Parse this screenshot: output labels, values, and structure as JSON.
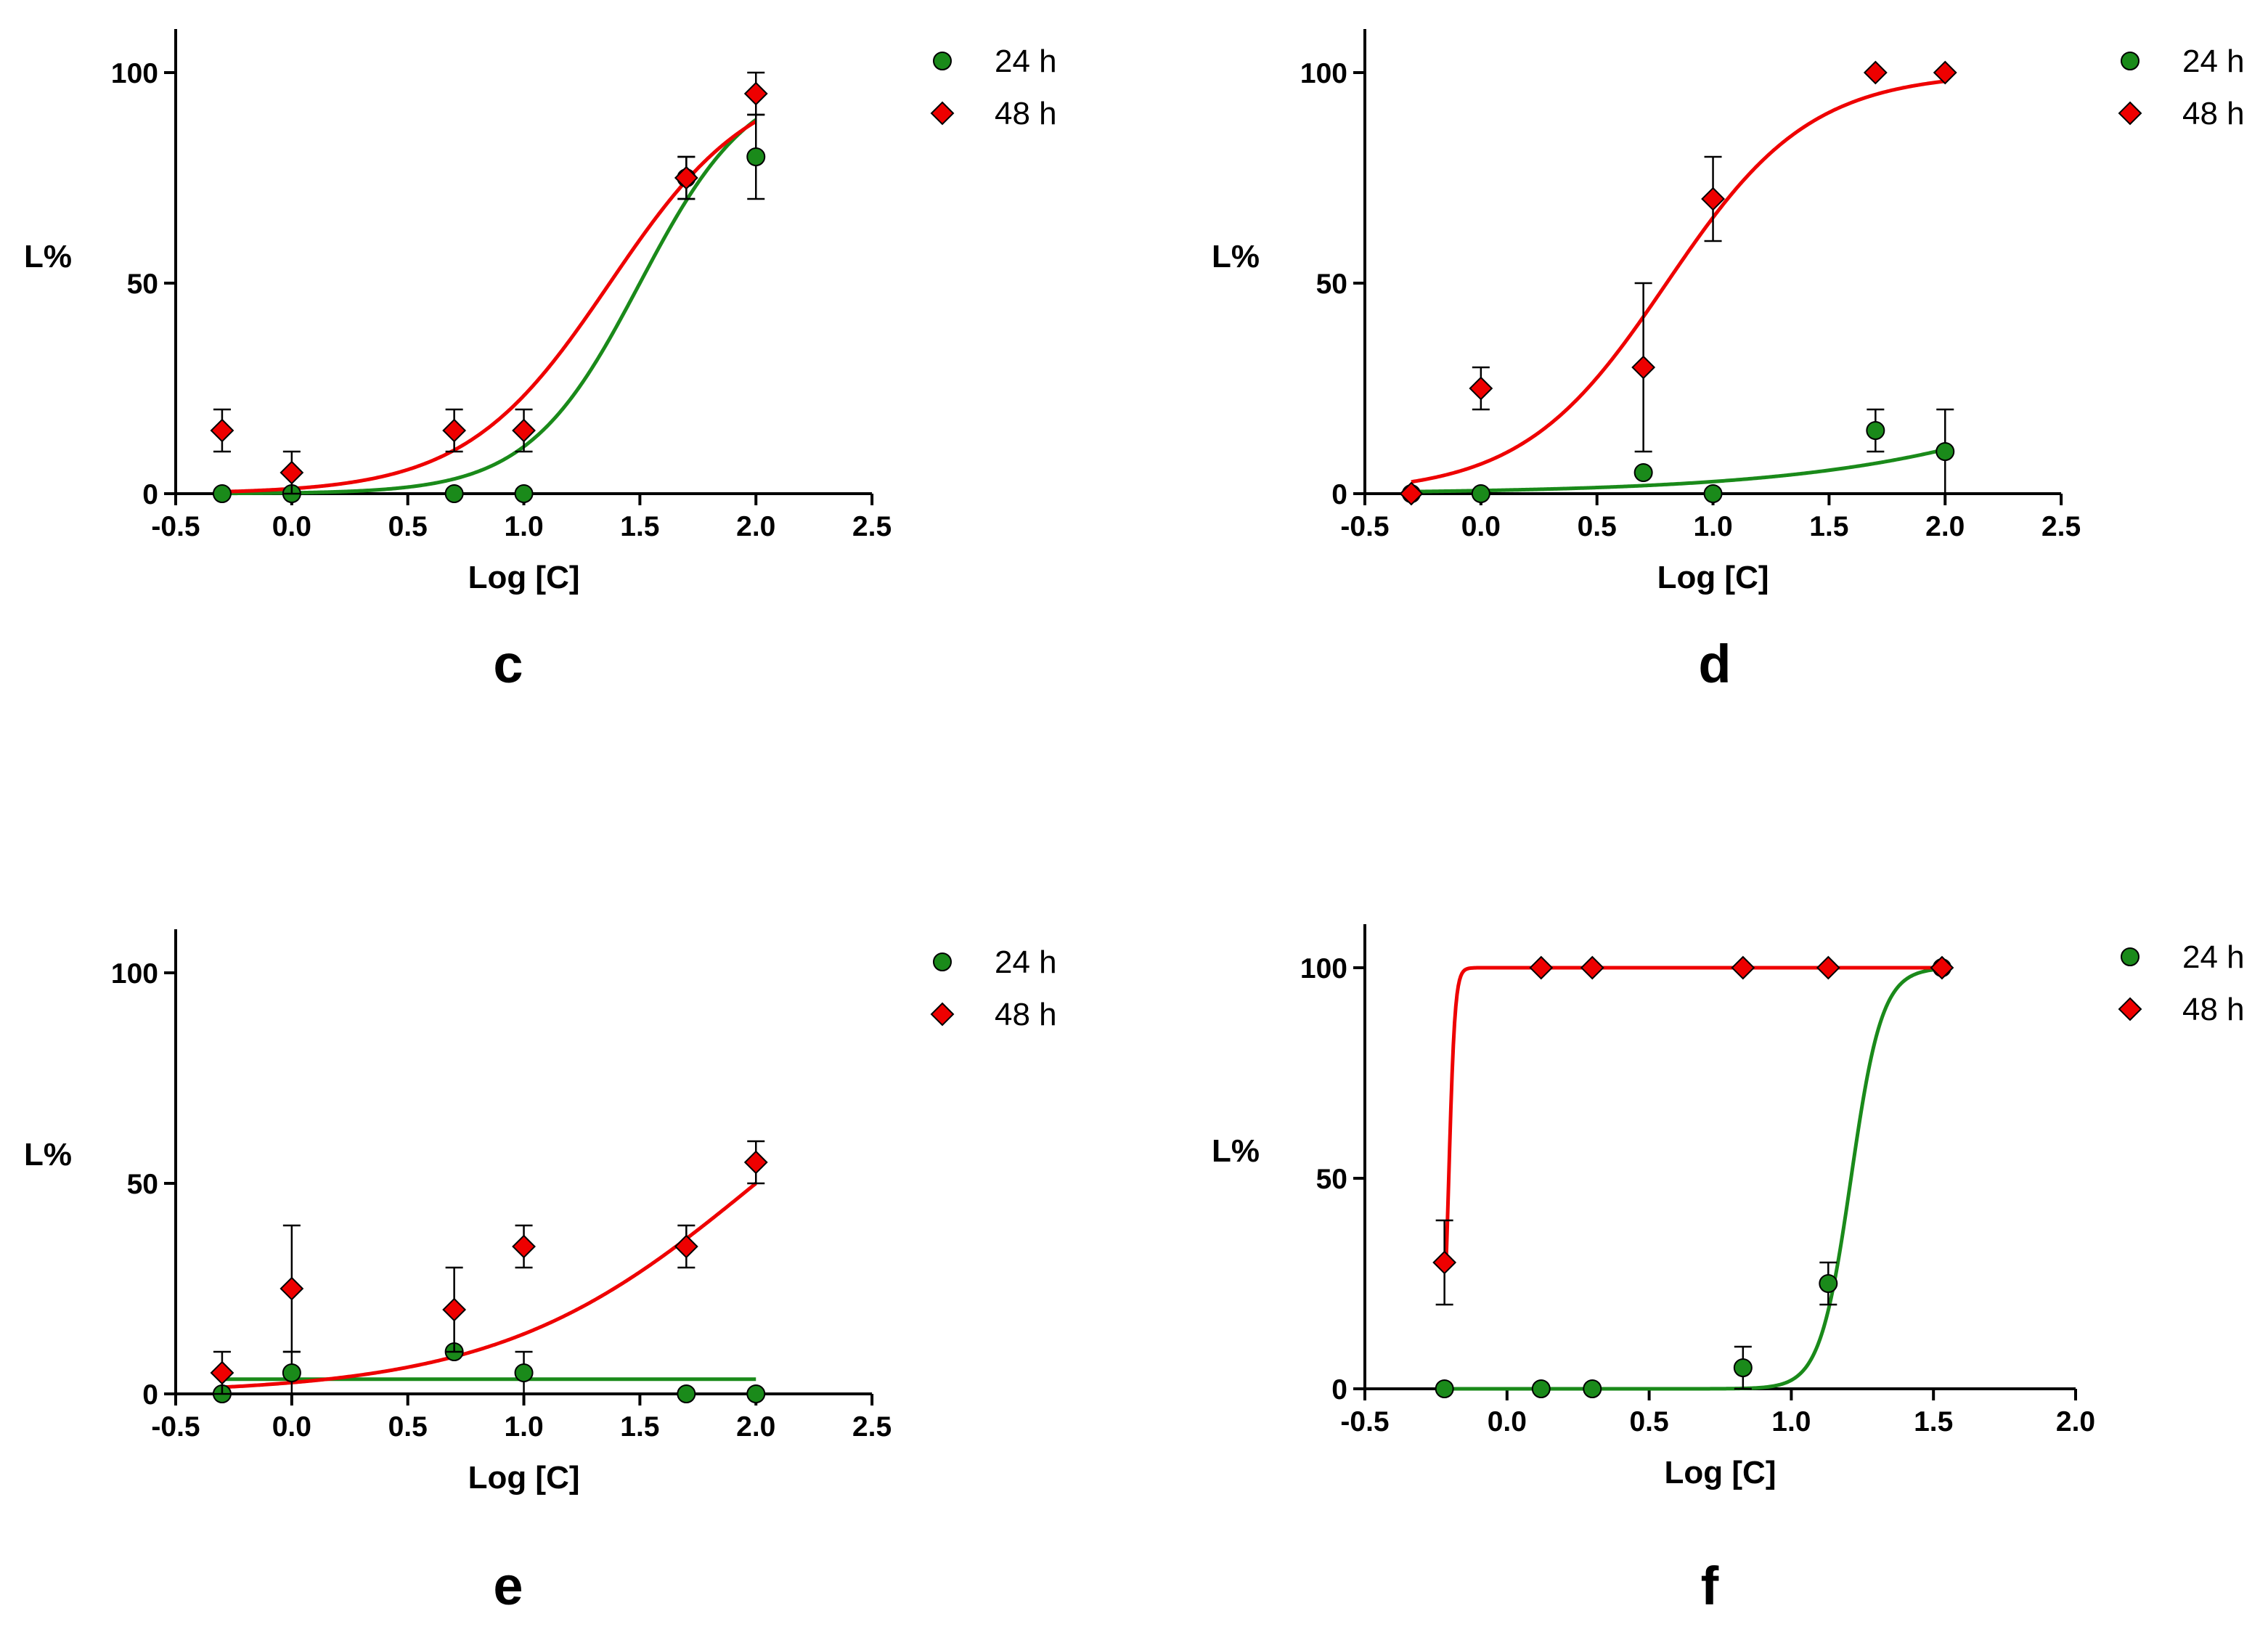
{
  "chart_data": [
    {
      "type": "line",
      "panel_label": "c",
      "xlabel": "Log [C]",
      "ylabel": "L%",
      "xlim": [
        -0.5,
        2.5
      ],
      "ylim": [
        0,
        110
      ],
      "xticks": [
        -0.5,
        0.0,
        0.5,
        1.0,
        1.5,
        2.0,
        2.5
      ],
      "xtick_labels": [
        "-0.5",
        "0.0",
        "0.5",
        "1.0",
        "1.5",
        "2.0",
        "2.5"
      ],
      "yticks": [
        0,
        50,
        100
      ],
      "ytick_labels": [
        "0",
        "50",
        "100"
      ],
      "legend_position": "top-right",
      "series": [
        {
          "name": "24 h",
          "marker": "circle",
          "color": "#1a8a1a",
          "x": [
            -0.3,
            0.0,
            0.7,
            1.0,
            1.7,
            2.0
          ],
          "y": [
            0,
            0,
            0,
            0,
            75,
            80
          ],
          "err": [
            0,
            0,
            0,
            0,
            5,
            10
          ],
          "fit": {
            "bottom": 0,
            "top": 100,
            "logEC50": 1.5,
            "hill": 1.8
          }
        },
        {
          "name": "48 h",
          "marker": "diamond",
          "color": "#ee0000",
          "x": [
            -0.3,
            0.0,
            0.7,
            1.0,
            1.7,
            2.0
          ],
          "y": [
            15,
            5,
            15,
            15,
            75,
            95
          ],
          "err": [
            5,
            5,
            5,
            5,
            5,
            5
          ],
          "fit": {
            "bottom": 0,
            "top": 100,
            "logEC50": 1.37,
            "hill": 1.4
          }
        }
      ]
    },
    {
      "type": "line",
      "panel_label": "d",
      "xlabel": "Log [C]",
      "ylabel": "L%",
      "xlim": [
        -0.5,
        2.5
      ],
      "ylim": [
        0,
        110
      ],
      "xticks": [
        -0.5,
        0.0,
        0.5,
        1.0,
        1.5,
        2.0,
        2.5
      ],
      "xtick_labels": [
        "-0.5",
        "0.0",
        "0.5",
        "1.0",
        "1.5",
        "2.0",
        "2.5"
      ],
      "yticks": [
        0,
        50,
        100
      ],
      "ytick_labels": [
        "0",
        "50",
        "100"
      ],
      "legend_position": "top-right",
      "series": [
        {
          "name": "24 h",
          "marker": "circle",
          "color": "#1a8a1a",
          "x": [
            -0.3,
            0.0,
            0.7,
            1.0,
            1.7,
            2.0
          ],
          "y": [
            0,
            0,
            5,
            0,
            15,
            10
          ],
          "err": [
            0,
            0,
            0,
            0,
            5,
            10
          ],
          "fit": {
            "bottom": 0,
            "top": 100,
            "logEC50": 3.55,
            "hill": 0.6
          }
        },
        {
          "name": "48 h",
          "marker": "diamond",
          "color": "#ee0000",
          "x": [
            -0.3,
            0.0,
            0.7,
            1.0,
            1.7,
            2.0
          ],
          "y": [
            0,
            25,
            30,
            70,
            100,
            100
          ],
          "err": [
            0,
            5,
            20,
            10,
            0,
            0
          ],
          "fit": {
            "bottom": 0,
            "top": 100,
            "logEC50": 0.8,
            "hill": 1.4
          }
        }
      ]
    },
    {
      "type": "line",
      "panel_label": "e",
      "xlabel": "Log [C]",
      "ylabel": "L%",
      "xlim": [
        -0.5,
        2.5
      ],
      "ylim": [
        0,
        110
      ],
      "xticks": [
        -0.5,
        0.0,
        0.5,
        1.0,
        1.5,
        2.0,
        2.5
      ],
      "xtick_labels": [
        "-0.5",
        "0.0",
        "0.5",
        "1.0",
        "1.5",
        "2.0",
        "2.5"
      ],
      "yticks": [
        0,
        50,
        100
      ],
      "ytick_labels": [
        "0",
        "50",
        "100"
      ],
      "legend_position": "top-right",
      "series": [
        {
          "name": "24 h",
          "marker": "circle",
          "color": "#1a8a1a",
          "x": [
            -0.3,
            0.0,
            0.7,
            1.0,
            1.7,
            2.0
          ],
          "y": [
            0,
            5,
            10,
            5,
            0,
            0
          ],
          "err": [
            0,
            5,
            0,
            5,
            0,
            0
          ],
          "fit": {
            "type": "constant",
            "value": 3.5
          }
        },
        {
          "name": "48 h",
          "marker": "diamond",
          "color": "#ee0000",
          "x": [
            -0.3,
            0.0,
            0.7,
            1.0,
            1.7,
            2.0
          ],
          "y": [
            5,
            25,
            20,
            35,
            35,
            55
          ],
          "err": [
            5,
            15,
            10,
            5,
            5,
            5
          ],
          "fit": {
            "bottom": 0,
            "top": 100,
            "logEC50": 2.0,
            "hill": 0.78
          }
        }
      ]
    },
    {
      "type": "line",
      "panel_label": "f",
      "xlabel": "Log [C]",
      "ylabel": "L%",
      "xlim": [
        -0.5,
        2.0
      ],
      "ylim": [
        0,
        110
      ],
      "xticks": [
        -0.5,
        0.0,
        0.5,
        1.0,
        1.5,
        2.0
      ],
      "xtick_labels": [
        "-0.5",
        "0.0",
        "0.5",
        "1.0",
        "1.5",
        "2.0"
      ],
      "yticks": [
        0,
        50,
        100
      ],
      "ytick_labels": [
        "0",
        "50",
        "100"
      ],
      "legend_position": "top-right",
      "series": [
        {
          "name": "24 h",
          "marker": "circle",
          "color": "#1a8a1a",
          "x": [
            -0.22,
            0.12,
            0.3,
            0.83,
            1.13,
            1.53
          ],
          "y": [
            0,
            0,
            0,
            5,
            25,
            100
          ],
          "err": [
            0,
            0,
            0,
            5,
            5,
            0
          ],
          "fit": {
            "bottom": 0,
            "top": 100,
            "logEC50": 1.21,
            "hill": 8.0,
            "xmin": -0.22,
            "xmax": 1.53
          }
        },
        {
          "name": "48 h",
          "marker": "diamond",
          "color": "#ee0000",
          "x": [
            -0.22,
            0.12,
            0.3,
            0.83,
            1.13,
            1.53
          ],
          "y": [
            30,
            100,
            100,
            100,
            100,
            100
          ],
          "err": [
            10,
            0,
            0,
            0,
            0,
            0
          ],
          "fit": {
            "bottom": 0,
            "top": 100,
            "logEC50": -0.205,
            "hill": 40.0,
            "xmin": -0.215,
            "xmax": 1.53
          }
        }
      ]
    }
  ]
}
